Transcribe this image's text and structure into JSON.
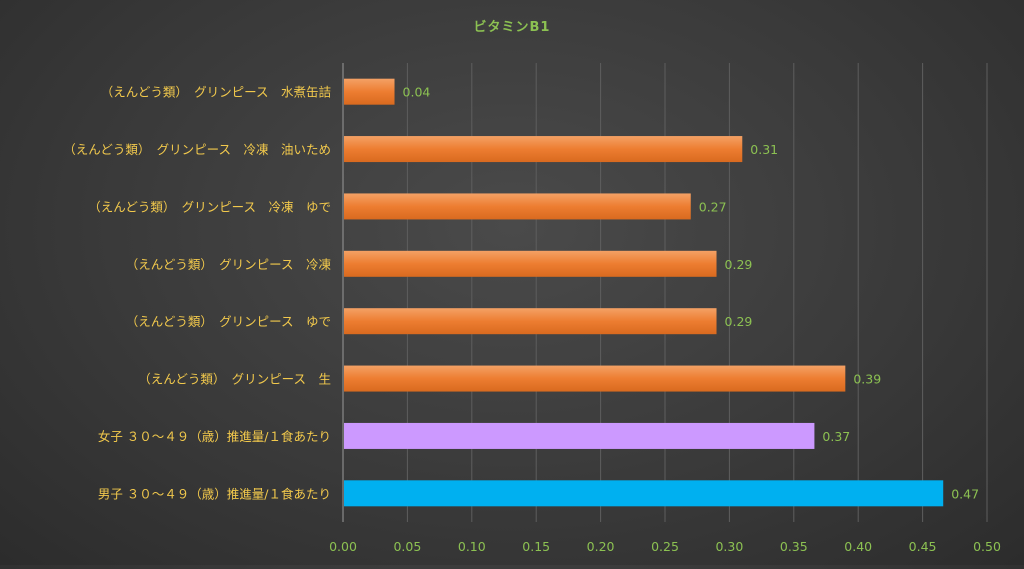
{
  "chart_data": {
    "type": "bar",
    "orientation": "horizontal",
    "title": "ビタミンB1",
    "xlabel": "",
    "ylabel": "",
    "xlim": [
      0,
      0.5
    ],
    "x_ticks": [
      "0.00",
      "0.05",
      "0.10",
      "0.15",
      "0.20",
      "0.25",
      "0.30",
      "0.35",
      "0.40",
      "0.45",
      "0.50"
    ],
    "grid": true,
    "legend": "none",
    "categories": [
      "（えんどう類）　グリンピース　水煮缶詰",
      "（えんどう類）　グリンピース　冷凍　油いため",
      "（えんどう類）　グリンピース　冷凍　ゆで",
      "（えんどう類）　グリンピース　冷凍",
      "（えんどう類）　グリンピース　ゆで",
      "（えんどう類）　グリンピース　生",
      "女子 ３０～４９（歳）推進量/１食あたり",
      "男子 ３０～４９（歳）推進量/１食あたり"
    ],
    "values": [
      0.04,
      0.31,
      0.27,
      0.29,
      0.29,
      0.39,
      0.366,
      0.466
    ],
    "data_labels": [
      "0.04",
      "0.31",
      "0.27",
      "0.29",
      "0.29",
      "0.39",
      "0.37",
      "0.47"
    ],
    "bar_colors": [
      "#ed7d31",
      "#ed7d31",
      "#ed7d31",
      "#ed7d31",
      "#ed7d31",
      "#ed7d31",
      "#cc99ff",
      "#00b0f0"
    ]
  }
}
